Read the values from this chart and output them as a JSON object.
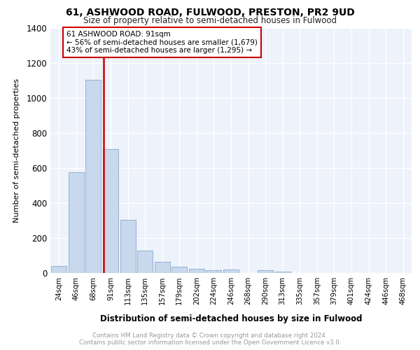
{
  "title": "61, ASHWOOD ROAD, FULWOOD, PRESTON, PR2 9UD",
  "subtitle": "Size of property relative to semi-detached houses in Fulwood",
  "xlabel": "Distribution of semi-detached houses by size in Fulwood",
  "ylabel": "Number of semi-detached properties",
  "footer_line1": "Contains HM Land Registry data © Crown copyright and database right 2024.",
  "footer_line2": "Contains public sector information licensed under the Open Government Licence v3.0.",
  "annotation_line1": "61 ASHWOOD ROAD: 91sqm",
  "annotation_line2": "← 56% of semi-detached houses are smaller (1,679)",
  "annotation_line3": "43% of semi-detached houses are larger (1,295) →",
  "property_size": 91,
  "bar_color": "#c8d8ed",
  "bar_edge_color": "#8aaacb",
  "vline_color": "#cc0000",
  "annotation_box_color": "#cc0000",
  "categories": [
    "24sqm",
    "46sqm",
    "68sqm",
    "91sqm",
    "113sqm",
    "135sqm",
    "157sqm",
    "179sqm",
    "202sqm",
    "224sqm",
    "246sqm",
    "268sqm",
    "290sqm",
    "313sqm",
    "335sqm",
    "357sqm",
    "379sqm",
    "401sqm",
    "424sqm",
    "446sqm",
    "468sqm"
  ],
  "values": [
    40,
    575,
    1105,
    710,
    305,
    130,
    65,
    38,
    25,
    18,
    20,
    0,
    15,
    10,
    0,
    0,
    0,
    0,
    0,
    0,
    0
  ],
  "ylim": [
    0,
    1400
  ],
  "yticks": [
    0,
    200,
    400,
    600,
    800,
    1000,
    1200,
    1400
  ],
  "vline_x_index": 3,
  "background_color": "#edf2fb",
  "grid_color": "#ffffff"
}
